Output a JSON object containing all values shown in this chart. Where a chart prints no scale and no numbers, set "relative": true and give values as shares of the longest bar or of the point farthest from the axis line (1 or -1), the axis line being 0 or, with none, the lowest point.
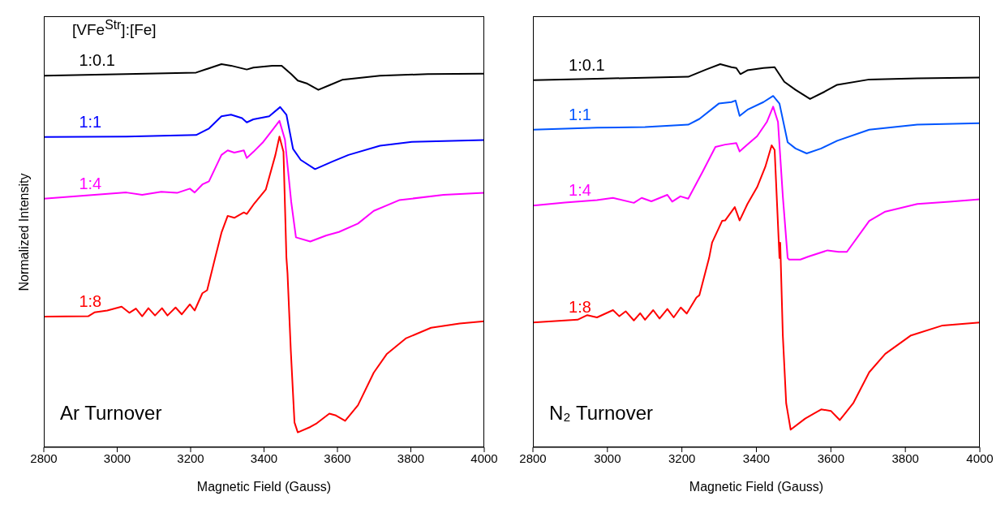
{
  "chart_data": [
    {
      "type": "line",
      "relative": true,
      "legend_title": "[VFe$^{Str}$]:[Fe]",
      "xlabel": "Magnetic Field (Gauss)",
      "ylabel": "Normalized Intensity",
      "xlim": [
        2800,
        4000
      ],
      "xticks": [
        2800,
        3000,
        3200,
        3400,
        3600,
        3800,
        4000
      ],
      "annotations": [
        "Ar Turnover"
      ],
      "series": [
        {
          "name": "1:0.1",
          "color": "#000000",
          "x": [
            2800,
            3025,
            3215,
            3284,
            3310,
            3353,
            3371,
            3423,
            3448,
            3474,
            3492,
            3518,
            3548,
            3578,
            3613,
            3716,
            3846,
            4000
          ],
          "values": [
            0.97,
            0.974,
            0.978,
            1.0,
            0.996,
            0.986,
            0.991,
            0.996,
            0.996,
            0.974,
            0.957,
            0.949,
            0.933,
            0.945,
            0.959,
            0.97,
            0.974,
            0.975
          ]
        },
        {
          "name": "1:1",
          "color": "#0000ff",
          "x": [
            2800,
            3025,
            3215,
            3250,
            3284,
            3310,
            3340,
            3353,
            3371,
            3414,
            3444,
            3461,
            3479,
            3500,
            3539,
            3587,
            3630,
            3716,
            3803,
            4000
          ],
          "values": [
            0.81,
            0.811,
            0.815,
            0.832,
            0.864,
            0.868,
            0.859,
            0.848,
            0.856,
            0.864,
            0.888,
            0.868,
            0.779,
            0.75,
            0.726,
            0.746,
            0.763,
            0.787,
            0.797,
            0.802
          ]
        },
        {
          "name": "1:4",
          "color": "#ff00ff",
          "x": [
            2800,
            2938,
            3025,
            3068,
            3120,
            3163,
            3198,
            3211,
            3232,
            3250,
            3284,
            3301,
            3319,
            3345,
            3353,
            3371,
            3396,
            3423,
            3442,
            3457,
            3474,
            3487,
            3526,
            3570,
            3604,
            3656,
            3699,
            3768,
            3889,
            4000
          ],
          "values": [
            0.649,
            0.659,
            0.665,
            0.659,
            0.667,
            0.664,
            0.675,
            0.665,
            0.686,
            0.694,
            0.763,
            0.775,
            0.769,
            0.775,
            0.755,
            0.771,
            0.795,
            0.828,
            0.852,
            0.803,
            0.641,
            0.548,
            0.537,
            0.553,
            0.562,
            0.584,
            0.617,
            0.645,
            0.659,
            0.664
          ]
        },
        {
          "name": "1:8",
          "color": "#ff0000",
          "x": [
            2800,
            2921,
            2938,
            2973,
            3012,
            3033,
            3051,
            3068,
            3085,
            3103,
            3122,
            3137,
            3159,
            3176,
            3198,
            3211,
            3232,
            3245,
            3267,
            3284,
            3301,
            3319,
            3345,
            3353,
            3371,
            3405,
            3431,
            3442,
            3453,
            3461,
            3464,
            3473,
            3483,
            3492,
            3526,
            3544,
            3578,
            3596,
            3621,
            3656,
            3699,
            3734,
            3786,
            3855,
            3933,
            4000
          ],
          "values": [
            0.341,
            0.342,
            0.352,
            0.357,
            0.367,
            0.351,
            0.362,
            0.342,
            0.363,
            0.344,
            0.363,
            0.344,
            0.365,
            0.347,
            0.373,
            0.357,
            0.402,
            0.41,
            0.495,
            0.56,
            0.604,
            0.599,
            0.613,
            0.609,
            0.633,
            0.673,
            0.763,
            0.811,
            0.771,
            0.495,
            0.454,
            0.252,
            0.065,
            0.039,
            0.053,
            0.063,
            0.088,
            0.083,
            0.069,
            0.11,
            0.195,
            0.243,
            0.284,
            0.312,
            0.323,
            0.329
          ]
        }
      ]
    },
    {
      "type": "line",
      "relative": true,
      "xlabel": "Magnetic Field (Gauss)",
      "xlim": [
        2800,
        4000
      ],
      "xticks": [
        2800,
        3000,
        3200,
        3400,
        3600,
        3800,
        4000
      ],
      "annotations": [
        "N₂ Turnover"
      ],
      "series": [
        {
          "name": "1:0.1",
          "color": "#000000",
          "x": [
            2800,
            2972,
            3217,
            3265,
            3303,
            3333,
            3346,
            3357,
            3376,
            3419,
            3449,
            3475,
            3505,
            3544,
            3583,
            3617,
            3703,
            3832,
            4000
          ],
          "values": [
            0.958,
            0.962,
            0.967,
            0.986,
            1.0,
            0.992,
            0.99,
            0.974,
            0.984,
            0.99,
            0.992,
            0.954,
            0.933,
            0.909,
            0.928,
            0.946,
            0.96,
            0.963,
            0.965
          ]
        },
        {
          "name": "1:1",
          "color": "#0055ff",
          "x": [
            2800,
            2972,
            3101,
            3217,
            3247,
            3299,
            3333,
            3344,
            3355,
            3376,
            3419,
            3445,
            3462,
            3484,
            3505,
            3535,
            3574,
            3617,
            3703,
            3832,
            4000
          ],
          "values": [
            0.829,
            0.834,
            0.836,
            0.842,
            0.857,
            0.897,
            0.901,
            0.905,
            0.865,
            0.881,
            0.901,
            0.917,
            0.897,
            0.796,
            0.78,
            0.767,
            0.78,
            0.8,
            0.829,
            0.842,
            0.846
          ]
        },
        {
          "name": "1:4",
          "color": "#ff00ff",
          "x": [
            2800,
            2886,
            2972,
            3015,
            3071,
            3092,
            3118,
            3161,
            3174,
            3196,
            3217,
            3256,
            3290,
            3316,
            3346,
            3355,
            3376,
            3402,
            3428,
            3445,
            3458,
            3471,
            3484,
            3488,
            3518,
            3540,
            3591,
            3621,
            3643,
            3703,
            3746,
            3832,
            3918,
            4000
          ],
          "values": [
            0.631,
            0.639,
            0.645,
            0.651,
            0.638,
            0.651,
            0.642,
            0.659,
            0.641,
            0.655,
            0.649,
            0.72,
            0.784,
            0.79,
            0.794,
            0.772,
            0.79,
            0.812,
            0.849,
            0.889,
            0.849,
            0.655,
            0.494,
            0.49,
            0.49,
            0.498,
            0.514,
            0.51,
            0.51,
            0.591,
            0.615,
            0.635,
            0.641,
            0.647
          ]
        },
        {
          "name": "1:8",
          "color": "#ff0000",
          "x": [
            2800,
            2920,
            2946,
            2972,
            3015,
            3032,
            3049,
            3071,
            3088,
            3101,
            3123,
            3140,
            3161,
            3178,
            3197,
            3213,
            3239,
            3247,
            3273,
            3281,
            3308,
            3316,
            3342,
            3355,
            3376,
            3402,
            3424,
            3441,
            3449,
            3462,
            3464,
            3471,
            3480,
            3492,
            3531,
            3574,
            3600,
            3624,
            3660,
            3703,
            3746,
            3815,
            3900,
            4000
          ],
          "values": [
            0.326,
            0.333,
            0.345,
            0.339,
            0.358,
            0.342,
            0.355,
            0.331,
            0.35,
            0.333,
            0.358,
            0.336,
            0.361,
            0.339,
            0.365,
            0.349,
            0.391,
            0.397,
            0.494,
            0.534,
            0.591,
            0.592,
            0.627,
            0.592,
            0.635,
            0.679,
            0.732,
            0.788,
            0.776,
            0.494,
            0.534,
            0.292,
            0.115,
            0.046,
            0.075,
            0.099,
            0.095,
            0.071,
            0.115,
            0.196,
            0.244,
            0.292,
            0.318,
            0.326
          ]
        }
      ]
    }
  ]
}
